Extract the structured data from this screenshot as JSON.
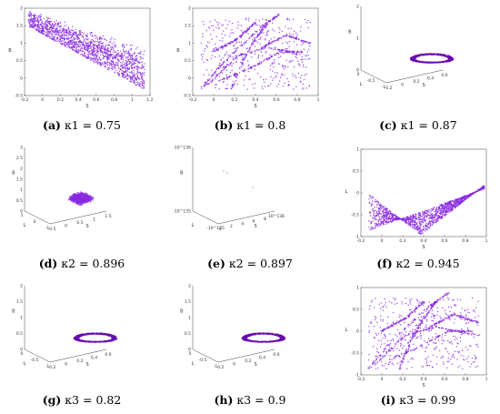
{
  "colors": {
    "points": "#8a2be2",
    "dense": "#6a0dad",
    "axis": "#444444"
  },
  "chart_data": [
    {
      "id": "a",
      "type": "scatter",
      "dim": "2d",
      "caption_letter": "(a)",
      "caption_eq": "κ1 = 0.75",
      "xlabel": "S",
      "ylabel": "B",
      "xlim": [
        -0.2,
        1.2
      ],
      "ylim": [
        -0.5,
        2.0
      ],
      "xticks": [
        "-0.2",
        "0",
        "0.2",
        "0.4",
        "0.6",
        "0.8",
        "1",
        "1.2"
      ],
      "yticks": [
        "-0.5",
        "0",
        "0.5",
        "1",
        "1.5",
        "2"
      ],
      "shape": "wedge"
    },
    {
      "id": "b",
      "type": "scatter",
      "dim": "2d",
      "caption_letter": "(b)",
      "caption_eq": "κ1 = 0.8",
      "xlabel": "S",
      "ylabel": "B",
      "xlim": [
        -0.2,
        1.0
      ],
      "ylim": [
        -0.5,
        2.0
      ],
      "xticks": [
        "-0.2",
        "0",
        "0.2",
        "0.4",
        "0.6",
        "0.8",
        "1"
      ],
      "yticks": [
        "-0.5",
        "0",
        "0.5",
        "1",
        "1.5",
        "2"
      ],
      "shape": "web"
    },
    {
      "id": "c",
      "type": "scatter",
      "dim": "3d",
      "caption_letter": "(c)",
      "caption_eq": "κ1 = 0.87",
      "xlabel": "S",
      "ylabel": "L",
      "zlabel": "B",
      "zticks": [
        "0",
        "1",
        "2"
      ],
      "xticks": [
        "-0.2",
        "0",
        "0.2",
        "0.4",
        "0.6"
      ],
      "yticks": [
        "-1",
        "-0.5",
        "0"
      ],
      "shape": "ring"
    },
    {
      "id": "d",
      "type": "scatter",
      "dim": "3d",
      "caption_letter": "(d)",
      "caption_eq": "κ2 = 0.896",
      "xlabel": "S",
      "ylabel": "L",
      "zlabel": "B",
      "zticks": [
        "0",
        "0.5",
        "1",
        "1.5",
        "2",
        "2.5",
        "3"
      ],
      "xticks": [
        "-0.5",
        "0",
        "0.5",
        "1",
        "1.5"
      ],
      "yticks": [
        "-1",
        "0",
        "1"
      ],
      "shape": "blob"
    },
    {
      "id": "e",
      "type": "scatter",
      "dim": "3d",
      "caption_letter": "(e)",
      "caption_eq": "κ2 = 0.897",
      "xlabel": "S",
      "ylabel": "L",
      "zlabel": "B",
      "zticks": [
        "-10^135",
        "-10^136"
      ],
      "xticks": [
        "0",
        "2",
        "4",
        "6",
        "8",
        "10^136"
      ],
      "yticks": [
        "-10^135"
      ],
      "shape": "sparse"
    },
    {
      "id": "f",
      "type": "scatter",
      "dim": "2d",
      "caption_letter": "(f)",
      "caption_eq": "κ2 = 0.945",
      "xlabel": "S",
      "ylabel": "L",
      "xlim": [
        -0.2,
        1.0
      ],
      "ylim": [
        -1,
        1.2
      ],
      "xticks": [
        "-0.2",
        "0",
        "0.2",
        "0.4",
        "0.6",
        "0.8",
        "1"
      ],
      "yticks": [
        "-1",
        "-0.5",
        "0",
        "0.5",
        "1"
      ],
      "shape": "fan"
    },
    {
      "id": "g",
      "type": "scatter",
      "dim": "3d",
      "caption_letter": "(g)",
      "caption_eq": "κ3 = 0.82",
      "xlabel": "S",
      "ylabel": "L",
      "zlabel": "B",
      "zticks": [
        "0",
        "0.5",
        "1",
        "1.5",
        "2"
      ],
      "xticks": [
        "-0.2",
        "0",
        "0.2",
        "0.4",
        "0.6"
      ],
      "yticks": [
        "-1",
        "-0.5",
        "0"
      ],
      "shape": "ring"
    },
    {
      "id": "h",
      "type": "scatter",
      "dim": "3d",
      "caption_letter": "(h)",
      "caption_eq": "κ3 = 0.9",
      "xlabel": "S",
      "ylabel": "L",
      "zlabel": "B",
      "zticks": [
        "0",
        "0.5",
        "1",
        "1.5",
        "2"
      ],
      "xticks": [
        "-0.2",
        "0",
        "0.2",
        "0.4",
        "0.6"
      ],
      "yticks": [
        "-1",
        "-0.5",
        "0"
      ],
      "shape": "ring"
    },
    {
      "id": "i",
      "type": "scatter",
      "dim": "2d",
      "caption_letter": "(i)",
      "caption_eq": "κ3 = 0.99",
      "xlabel": "S",
      "ylabel": "L",
      "xlim": [
        -0.2,
        1.0
      ],
      "ylim": [
        -1,
        1.2
      ],
      "xticks": [
        "-0.2",
        "0",
        "0.2",
        "0.4",
        "0.6",
        "0.8",
        "1"
      ],
      "yticks": [
        "-1",
        "-0.5",
        "0",
        "0.5",
        "1"
      ],
      "shape": "web"
    }
  ]
}
